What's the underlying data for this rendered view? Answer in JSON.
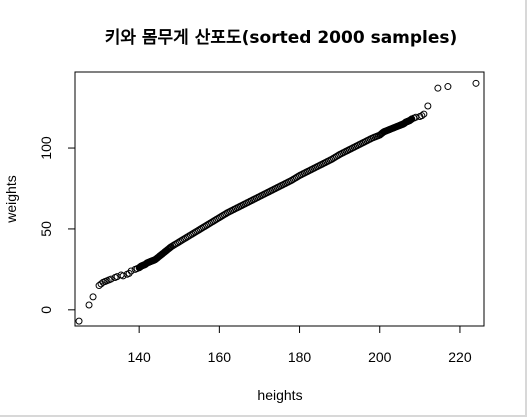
{
  "chart_data": {
    "type": "scatter",
    "title": "키와 몸무게 산포도(sorted 2000 samples)",
    "xlabel": "heights",
    "ylabel": "weights",
    "xlim": [
      124,
      226
    ],
    "ylim": [
      -10,
      147
    ],
    "xticks": [
      140,
      160,
      180,
      200,
      220
    ],
    "yticks": [
      0,
      50,
      100
    ],
    "grid": false,
    "marker": "open-circle",
    "point_color": "#000000",
    "sample_count": 2000,
    "series": [
      {
        "x": [
          125,
          127.5,
          128.5,
          130,
          130.5,
          131,
          131.5,
          132,
          132.5,
          133,
          134,
          134.5,
          135.5,
          136,
          137,
          137.5,
          138,
          139,
          139.5,
          140,
          140.5,
          141,
          141.5,
          142,
          142.5,
          143,
          143.5,
          144,
          145,
          146,
          147,
          148,
          150,
          152,
          154,
          156,
          158,
          160,
          162,
          164,
          166,
          168,
          170,
          172,
          174,
          176,
          178,
          180,
          182,
          184,
          186,
          188,
          190,
          192,
          194,
          196,
          198,
          200,
          201,
          202,
          203,
          204,
          205,
          205.5,
          206,
          206.5,
          207,
          207.5,
          208,
          208.5,
          209,
          210,
          210.5,
          211,
          212,
          214.5,
          217,
          224
        ],
        "y": [
          -7,
          3,
          8,
          15,
          16,
          17,
          17.5,
          18,
          18.5,
          19,
          20,
          20.5,
          21.5,
          21,
          22,
          22.5,
          24,
          25,
          25.5,
          26,
          27,
          27.5,
          28,
          29,
          29.5,
          30,
          30.5,
          31,
          33,
          35,
          37,
          39,
          42,
          45,
          48,
          51,
          54,
          57,
          60,
          62.5,
          65,
          67.5,
          70,
          72.5,
          75,
          77.5,
          80,
          83,
          85.5,
          88,
          90.5,
          93,
          96,
          98.5,
          101,
          103.5,
          106,
          108,
          110,
          111,
          112,
          113,
          114,
          114.5,
          115,
          116,
          116.5,
          117,
          118,
          118.5,
          119,
          119.5,
          120,
          121,
          126,
          137,
          138,
          140
        ]
      }
    ]
  }
}
